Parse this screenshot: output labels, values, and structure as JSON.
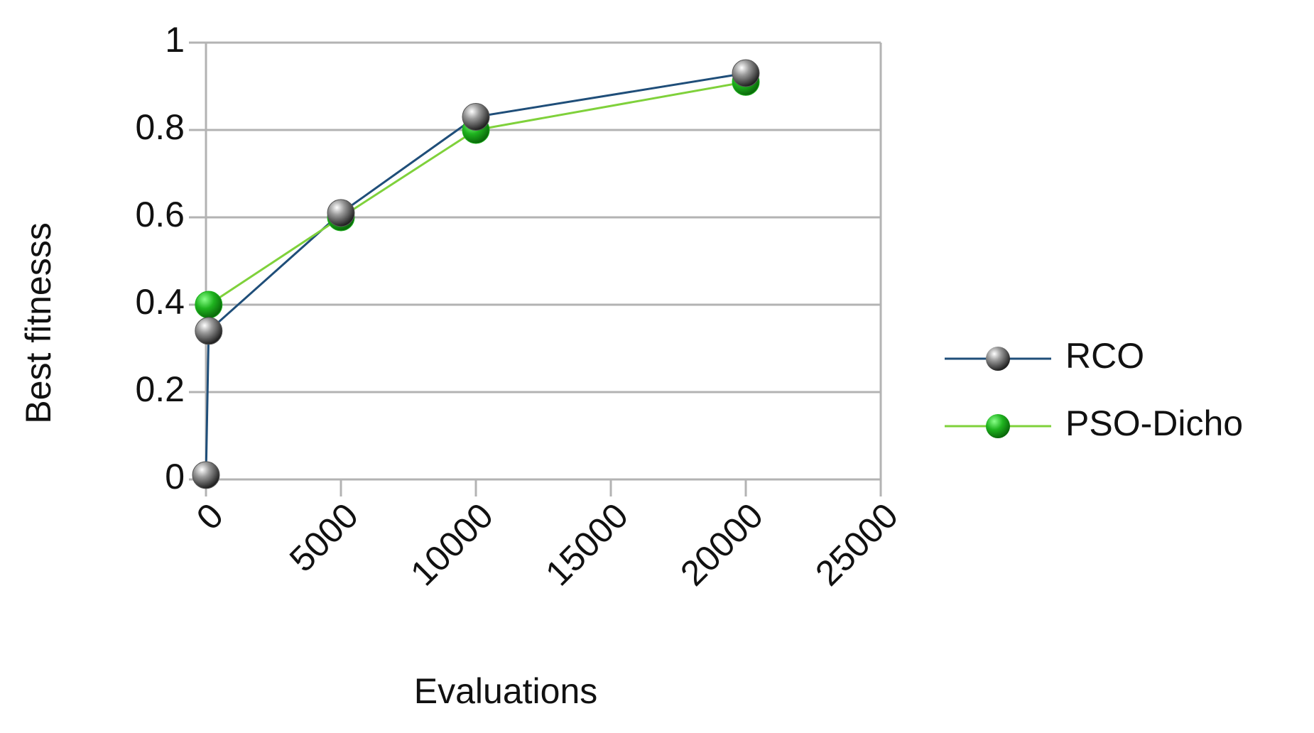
{
  "chart_data": {
    "type": "line",
    "xlabel": "Evaluations",
    "ylabel": "Best fitnesss",
    "series": [
      {
        "name": "RCO",
        "color": "#1f4e79",
        "marker": "#555555",
        "x": [
          0,
          100,
          5000,
          10000,
          20000
        ],
        "values": [
          0.01,
          0.34,
          0.61,
          0.83,
          0.93
        ]
      },
      {
        "name": "PSO-Dicho",
        "color": "#7fd13b",
        "marker": "#1fb31f",
        "x": [
          100,
          5000,
          10000,
          20000
        ],
        "values": [
          0.4,
          0.6,
          0.8,
          0.91
        ]
      }
    ],
    "xlim": [
      0,
      25000
    ],
    "xticks": [
      0,
      5000,
      10000,
      15000,
      20000,
      25000
    ],
    "ylim": [
      0,
      1
    ],
    "yticks": [
      0,
      0.2,
      0.4,
      0.6,
      0.8,
      1
    ],
    "grid": true,
    "legend": "right"
  }
}
